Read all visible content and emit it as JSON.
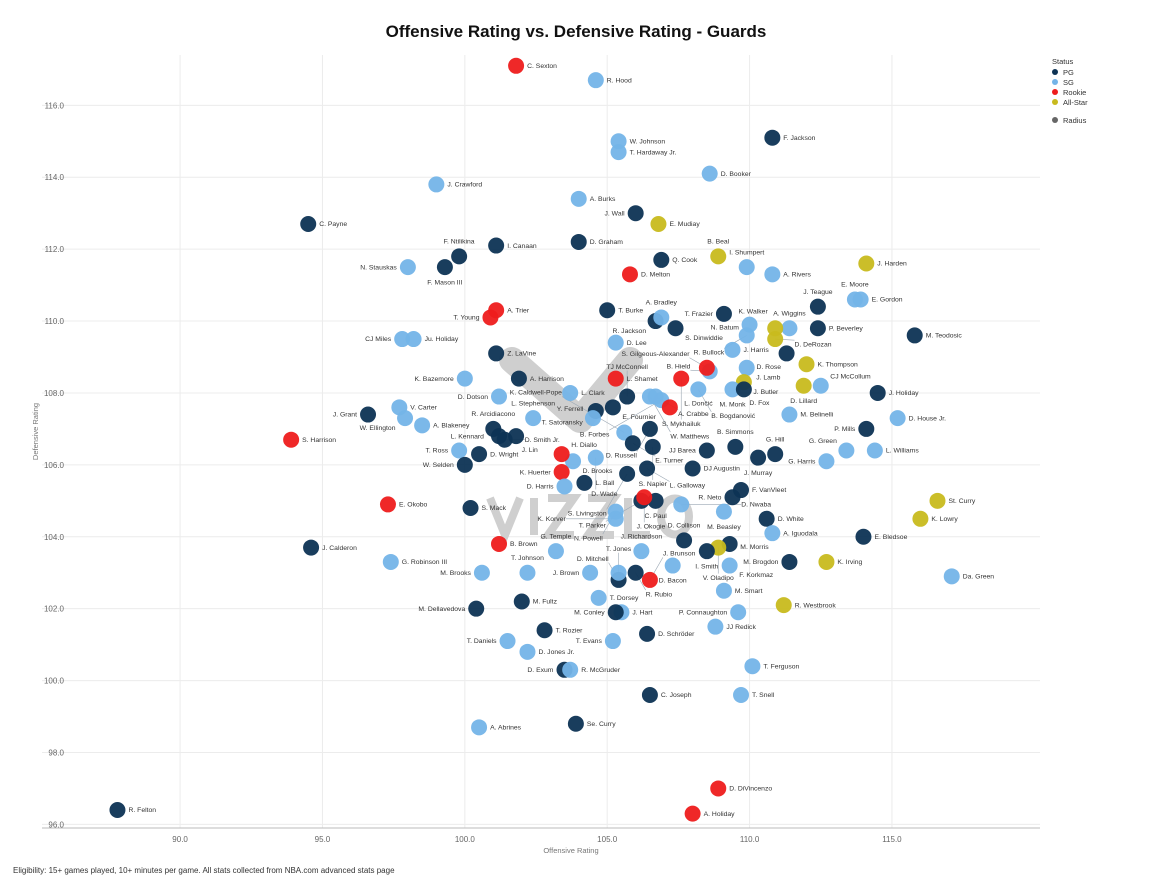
{
  "chart_data": {
    "type": "scatter",
    "title": "Offensive Rating vs. Defensive Rating - Guards",
    "xlabel": "Offensive Rating",
    "ylabel": "Defensive Rating",
    "xlim": [
      85.15,
      120.2
    ],
    "ylim": [
      95.9,
      117.4
    ],
    "xticks": [
      "90.0",
      "95.0",
      "100.0",
      "105.0",
      "110.0",
      "115.0"
    ],
    "yticks": [
      "96.0",
      "98.0",
      "100.0",
      "102.0",
      "104.0",
      "106.0",
      "108.0",
      "110.0",
      "112.0",
      "114.0",
      "116.0"
    ],
    "grid": true,
    "legend": {
      "placement": "top-right",
      "title": "Status",
      "entries": [
        "PG",
        "SG",
        "Rookie",
        "All-Star"
      ],
      "size_label": "Radius"
    },
    "colors": {
      "PG": "#0d3354",
      "SG": "#74b4e8",
      "Rookie": "#ee1c1c",
      "All-Star": "#c8ba1e"
    },
    "points": [
      {
        "name": "C. Sexton",
        "x": 101.8,
        "y": 117.1,
        "status": "Rookie"
      },
      {
        "name": "R. Hood",
        "x": 104.6,
        "y": 116.7,
        "status": "SG"
      },
      {
        "name": "W. Johnson",
        "x": 105.4,
        "y": 115.0,
        "status": "SG"
      },
      {
        "name": "T. Hardaway Jr.",
        "x": 105.4,
        "y": 114.7,
        "status": "SG"
      },
      {
        "name": "F. Jackson",
        "x": 110.8,
        "y": 115.1,
        "status": "PG"
      },
      {
        "name": "D. Booker",
        "x": 108.6,
        "y": 114.1,
        "status": "SG"
      },
      {
        "name": "J. Crawford",
        "x": 99.0,
        "y": 113.8,
        "status": "SG"
      },
      {
        "name": "A. Burks",
        "x": 104.0,
        "y": 113.4,
        "status": "SG"
      },
      {
        "name": "J. Wall",
        "x": 106.0,
        "y": 113.0,
        "status": "PG"
      },
      {
        "name": "E. Mudiay",
        "x": 106.8,
        "y": 112.7,
        "status": "All-Star"
      },
      {
        "name": "C. Payne",
        "x": 94.5,
        "y": 112.7,
        "status": "PG"
      },
      {
        "name": "D. Graham",
        "x": 104.0,
        "y": 112.2,
        "status": "PG"
      },
      {
        "name": "I. Canaan",
        "x": 101.1,
        "y": 112.1,
        "status": "PG"
      },
      {
        "name": "F. Mason III",
        "x": 99.3,
        "y": 111.5,
        "status": "PG"
      },
      {
        "name": "F. Ntilikina",
        "x": 99.8,
        "y": 111.8,
        "status": "PG"
      },
      {
        "name": "N. Stauskas",
        "x": 98.0,
        "y": 111.5,
        "status": "SG"
      },
      {
        "name": "Q. Cook",
        "x": 106.9,
        "y": 111.7,
        "status": "PG"
      },
      {
        "name": "D. Melton",
        "x": 105.8,
        "y": 111.3,
        "status": "Rookie"
      },
      {
        "name": "B. Beal",
        "x": 108.9,
        "y": 111.8,
        "status": "All-Star"
      },
      {
        "name": "I. Shumpert",
        "x": 109.9,
        "y": 111.5,
        "status": "SG"
      },
      {
        "name": "A. Rivers",
        "x": 110.8,
        "y": 111.3,
        "status": "SG"
      },
      {
        "name": "J. Harden",
        "x": 114.1,
        "y": 111.6,
        "status": "All-Star"
      },
      {
        "name": "E. Moore",
        "x": 113.7,
        "y": 110.6,
        "status": "SG"
      },
      {
        "name": "E. Gordon",
        "x": 113.9,
        "y": 110.6,
        "status": "SG"
      },
      {
        "name": "A. Wiggins",
        "x": 111.4,
        "y": 109.8,
        "status": "SG"
      },
      {
        "name": "J. Teague",
        "x": 112.4,
        "y": 110.4,
        "status": "PG"
      },
      {
        "name": "P. Beverley",
        "x": 112.4,
        "y": 109.8,
        "status": "PG"
      },
      {
        "name": "D. DeRozan",
        "x": 110.9,
        "y": 109.5,
        "status": "All-Star"
      },
      {
        "name": "K. Walker",
        "x": 110.9,
        "y": 109.8,
        "status": "All-Star"
      },
      {
        "name": "M. Teodosic",
        "x": 115.8,
        "y": 109.6,
        "status": "PG"
      },
      {
        "name": "T. Frazier",
        "x": 109.1,
        "y": 110.2,
        "status": "PG"
      },
      {
        "name": "N. Batum",
        "x": 110.0,
        "y": 109.9,
        "status": "SG"
      },
      {
        "name": "R. Bullock",
        "x": 109.9,
        "y": 109.6,
        "status": "SG"
      },
      {
        "name": "J. Harris",
        "x": 109.4,
        "y": 109.2,
        "status": "SG"
      },
      {
        "name": "D. Rose",
        "x": 111.3,
        "y": 109.1,
        "status": "PG"
      },
      {
        "name": "K. Thompson",
        "x": 112.0,
        "y": 108.8,
        "status": "All-Star"
      },
      {
        "name": "J. Lamb",
        "x": 109.9,
        "y": 108.7,
        "status": "SG"
      },
      {
        "name": "J. Butler",
        "x": 109.8,
        "y": 108.3,
        "status": "All-Star"
      },
      {
        "name": "M. Monk",
        "x": 109.4,
        "y": 108.1,
        "status": "SG"
      },
      {
        "name": "D. Fox",
        "x": 109.8,
        "y": 108.1,
        "status": "PG"
      },
      {
        "name": "D. Lillard",
        "x": 111.9,
        "y": 108.2,
        "status": "All-Star"
      },
      {
        "name": "CJ McCollum",
        "x": 112.5,
        "y": 108.2,
        "status": "SG"
      },
      {
        "name": "J. Holiday",
        "x": 114.5,
        "y": 108.0,
        "status": "PG"
      },
      {
        "name": "M. Belinelli",
        "x": 111.4,
        "y": 107.4,
        "status": "SG"
      },
      {
        "name": "D. House Jr.",
        "x": 115.2,
        "y": 107.3,
        "status": "SG"
      },
      {
        "name": "P. Mills",
        "x": 114.1,
        "y": 107.0,
        "status": "PG"
      },
      {
        "name": "L. Williams",
        "x": 114.4,
        "y": 106.4,
        "status": "SG"
      },
      {
        "name": "G. Green",
        "x": 113.4,
        "y": 106.4,
        "status": "SG"
      },
      {
        "name": "G. Harris",
        "x": 112.7,
        "y": 106.1,
        "status": "SG"
      },
      {
        "name": "G. Hill",
        "x": 110.9,
        "y": 106.3,
        "status": "PG"
      },
      {
        "name": "J. Murray",
        "x": 110.3,
        "y": 106.2,
        "status": "PG"
      },
      {
        "name": "B. Simmons",
        "x": 109.5,
        "y": 106.5,
        "status": "PG"
      },
      {
        "name": "JJ Barea",
        "x": 108.5,
        "y": 106.4,
        "status": "PG"
      },
      {
        "name": "DJ Augustin",
        "x": 108.0,
        "y": 105.9,
        "status": "PG"
      },
      {
        "name": "F. VanVleet",
        "x": 109.7,
        "y": 105.3,
        "status": "PG"
      },
      {
        "name": "R. Neto",
        "x": 109.4,
        "y": 105.1,
        "status": "PG"
      },
      {
        "name": "M. Beasley",
        "x": 109.1,
        "y": 104.7,
        "status": "SG"
      },
      {
        "name": "D. White",
        "x": 110.6,
        "y": 104.5,
        "status": "PG"
      },
      {
        "name": "A. Iguodala",
        "x": 110.8,
        "y": 104.1,
        "status": "SG"
      },
      {
        "name": "E. Bledsoe",
        "x": 114.0,
        "y": 104.0,
        "status": "PG"
      },
      {
        "name": "St. Curry",
        "x": 116.6,
        "y": 105.0,
        "status": "All-Star"
      },
      {
        "name": "K. Lowry",
        "x": 116.0,
        "y": 104.5,
        "status": "All-Star"
      },
      {
        "name": "Da. Green",
        "x": 117.1,
        "y": 102.9,
        "status": "SG"
      },
      {
        "name": "K. Irving",
        "x": 112.7,
        "y": 103.3,
        "status": "All-Star"
      },
      {
        "name": "M. Brogdon",
        "x": 111.4,
        "y": 103.3,
        "status": "PG"
      },
      {
        "name": "M. Morris",
        "x": 109.3,
        "y": 103.8,
        "status": "PG"
      },
      {
        "name": "V. Oladipo",
        "x": 108.9,
        "y": 103.7,
        "status": "All-Star"
      },
      {
        "name": "D. Collison",
        "x": 107.7,
        "y": 103.9,
        "status": "PG"
      },
      {
        "name": "I. Smith",
        "x": 108.5,
        "y": 103.6,
        "status": "PG"
      },
      {
        "name": "F. Korkmaz",
        "x": 109.3,
        "y": 103.2,
        "status": "SG"
      },
      {
        "name": "D. Bacon",
        "x": 107.3,
        "y": 103.2,
        "status": "SG"
      },
      {
        "name": "M. Smart",
        "x": 109.1,
        "y": 102.5,
        "status": "SG"
      },
      {
        "name": "R. Westbrook",
        "x": 111.2,
        "y": 102.1,
        "status": "All-Star"
      },
      {
        "name": "P. Connaughton",
        "x": 109.6,
        "y": 101.9,
        "status": "SG"
      },
      {
        "name": "JJ Redick",
        "x": 108.8,
        "y": 101.5,
        "status": "SG"
      },
      {
        "name": "T. Ferguson",
        "x": 110.1,
        "y": 100.4,
        "status": "SG"
      },
      {
        "name": "T. Snell",
        "x": 109.7,
        "y": 99.6,
        "status": "SG"
      },
      {
        "name": "C. Joseph",
        "x": 106.5,
        "y": 99.6,
        "status": "PG"
      },
      {
        "name": "D. Schröder",
        "x": 106.4,
        "y": 101.3,
        "status": "PG"
      },
      {
        "name": "J. Hart",
        "x": 105.5,
        "y": 101.9,
        "status": "SG"
      },
      {
        "name": "M. Conley",
        "x": 105.3,
        "y": 101.9,
        "status": "PG"
      },
      {
        "name": "T. Evans",
        "x": 105.2,
        "y": 101.1,
        "status": "SG"
      },
      {
        "name": "T. Dorsey",
        "x": 104.7,
        "y": 102.3,
        "status": "SG"
      },
      {
        "name": "D. Mitchell",
        "x": 105.4,
        "y": 102.8,
        "status": "PG"
      },
      {
        "name": "T. Jones",
        "x": 105.4,
        "y": 103.0,
        "status": "SG"
      },
      {
        "name": "R. Rubio",
        "x": 106.0,
        "y": 103.0,
        "status": "PG"
      },
      {
        "name": "J. Brunson",
        "x": 106.5,
        "y": 102.8,
        "status": "Rookie"
      },
      {
        "name": "J. Richardson",
        "x": 106.2,
        "y": 103.6,
        "status": "SG"
      },
      {
        "name": "J. Brown",
        "x": 104.4,
        "y": 103.0,
        "status": "SG"
      },
      {
        "name": "T. Johnson",
        "x": 102.2,
        "y": 103.0,
        "status": "SG"
      },
      {
        "name": "M. Brooks",
        "x": 100.6,
        "y": 103.0,
        "status": "SG"
      },
      {
        "name": "G. Temple",
        "x": 103.2,
        "y": 103.6,
        "status": "SG"
      },
      {
        "name": "B. Brown",
        "x": 101.2,
        "y": 103.8,
        "status": "Rookie"
      },
      {
        "name": "M. Fultz",
        "x": 102.0,
        "y": 102.2,
        "status": "PG"
      },
      {
        "name": "M. Dellavedova",
        "x": 100.4,
        "y": 102.0,
        "status": "PG"
      },
      {
        "name": "T. Rozier",
        "x": 102.8,
        "y": 101.4,
        "status": "PG"
      },
      {
        "name": "T. Daniels",
        "x": 101.5,
        "y": 101.1,
        "status": "SG"
      },
      {
        "name": "D. Jones Jr.",
        "x": 102.2,
        "y": 100.8,
        "status": "SG"
      },
      {
        "name": "D. Exum",
        "x": 103.5,
        "y": 100.3,
        "status": "PG"
      },
      {
        "name": "R. McGruder",
        "x": 103.7,
        "y": 100.3,
        "status": "SG"
      },
      {
        "name": "Se. Curry",
        "x": 103.9,
        "y": 98.8,
        "status": "PG"
      },
      {
        "name": "A. Abrines",
        "x": 100.5,
        "y": 98.7,
        "status": "SG"
      },
      {
        "name": "D. DiVincenzo",
        "x": 108.9,
        "y": 97.0,
        "status": "Rookie"
      },
      {
        "name": "A. Holiday",
        "x": 108.0,
        "y": 96.3,
        "status": "Rookie"
      },
      {
        "name": "R. Felton",
        "x": 87.8,
        "y": 96.4,
        "status": "PG"
      },
      {
        "name": "J. Calderon",
        "x": 94.6,
        "y": 103.7,
        "status": "PG"
      },
      {
        "name": "G. Robinson III",
        "x": 97.4,
        "y": 103.3,
        "status": "SG"
      },
      {
        "name": "E. Okobo",
        "x": 97.3,
        "y": 104.9,
        "status": "Rookie"
      },
      {
        "name": "S. Mack",
        "x": 100.2,
        "y": 104.8,
        "status": "PG"
      },
      {
        "name": "S. Harrison",
        "x": 93.9,
        "y": 106.7,
        "status": "Rookie"
      },
      {
        "name": "J. Grant",
        "x": 96.6,
        "y": 107.4,
        "status": "PG"
      },
      {
        "name": "V. Carter",
        "x": 97.7,
        "y": 107.6,
        "status": "SG"
      },
      {
        "name": "W. Ellington",
        "x": 97.9,
        "y": 107.3,
        "status": "SG"
      },
      {
        "name": "A. Blakeney",
        "x": 98.5,
        "y": 107.1,
        "status": "SG"
      },
      {
        "name": "T. Ross",
        "x": 99.8,
        "y": 106.4,
        "status": "SG"
      },
      {
        "name": "D. Wright",
        "x": 100.5,
        "y": 106.3,
        "status": "PG"
      },
      {
        "name": "W. Selden",
        "x": 100.0,
        "y": 106.0,
        "status": "PG"
      },
      {
        "name": "R. Arcidiacono",
        "x": 101.0,
        "y": 107.0,
        "status": "PG"
      },
      {
        "name": "L. Kennard",
        "x": 101.2,
        "y": 106.8,
        "status": "PG"
      },
      {
        "name": "D. Smith Jr.",
        "x": 101.4,
        "y": 106.7,
        "status": "PG"
      },
      {
        "name": "J. Lin",
        "x": 101.8,
        "y": 106.8,
        "status": "PG"
      },
      {
        "name": "L. Stephenson",
        "x": 102.4,
        "y": 107.3,
        "status": "SG"
      },
      {
        "name": "K. Bazemore",
        "x": 100.0,
        "y": 108.4,
        "status": "SG"
      },
      {
        "name": "A. Harrison",
        "x": 101.9,
        "y": 108.4,
        "status": "PG"
      },
      {
        "name": "D. Dotson",
        "x": 101.2,
        "y": 107.9,
        "status": "SG"
      },
      {
        "name": "Z. LaVine",
        "x": 101.1,
        "y": 109.1,
        "status": "PG"
      },
      {
        "name": "T. Young",
        "x": 100.9,
        "y": 110.1,
        "status": "Rookie"
      },
      {
        "name": "A. Trier",
        "x": 101.1,
        "y": 110.3,
        "status": "Rookie"
      },
      {
        "name": "CJ Miles",
        "x": 97.8,
        "y": 109.5,
        "status": "SG"
      },
      {
        "name": "Ju. Holiday",
        "x": 98.2,
        "y": 109.5,
        "status": "SG"
      },
      {
        "name": "D. Lee",
        "x": 105.3,
        "y": 109.4,
        "status": "SG"
      },
      {
        "name": "T. Burke",
        "x": 105.0,
        "y": 110.3,
        "status": "PG"
      },
      {
        "name": "R. Jackson",
        "x": 106.7,
        "y": 110.0,
        "status": "PG"
      },
      {
        "name": "A. Bradley",
        "x": 106.9,
        "y": 110.1,
        "status": "SG"
      },
      {
        "name": "S. Dinwiddie",
        "x": 107.4,
        "y": 109.8,
        "status": "PG"
      },
      {
        "name": "L. Clark",
        "x": 103.7,
        "y": 108.0,
        "status": "SG"
      },
      {
        "name": "L. Shamet",
        "x": 105.3,
        "y": 108.4,
        "status": "Rookie"
      },
      {
        "name": "TJ McConnell",
        "x": 105.7,
        "y": 107.9,
        "status": "PG"
      },
      {
        "name": "E. Fournier",
        "x": 105.2,
        "y": 107.6,
        "status": "PG"
      },
      {
        "name": "B. Hield",
        "x": 108.6,
        "y": 108.6,
        "status": "SG"
      },
      {
        "name": "S. Gilgeous-Alexander",
        "x": 108.5,
        "y": 108.7,
        "status": "Rookie"
      },
      {
        "name": "S. Mykhailuk",
        "x": 107.6,
        "y": 108.4,
        "status": "Rookie"
      },
      {
        "name": "W. Matthews",
        "x": 106.5,
        "y": 107.9,
        "status": "SG"
      },
      {
        "name": "A. Crabbe",
        "x": 106.7,
        "y": 107.9,
        "status": "SG"
      },
      {
        "name": "B. Forbes",
        "x": 106.9,
        "y": 107.8,
        "status": "SG"
      },
      {
        "name": "L. Dončić",
        "x": 107.2,
        "y": 107.6,
        "status": "Rookie"
      },
      {
        "name": "B. Bogdanović",
        "x": 108.2,
        "y": 108.1,
        "status": "SG"
      },
      {
        "name": "T. Satoransky",
        "x": 104.6,
        "y": 107.5,
        "status": "PG"
      },
      {
        "name": "Y. Ferrell",
        "x": 104.5,
        "y": 107.3,
        "status": "SG"
      },
      {
        "name": "D. Russell",
        "x": 106.5,
        "y": 107.0,
        "status": "PG"
      },
      {
        "name": "K. Caldwell-Pope",
        "x": 105.6,
        "y": 106.9,
        "status": "SG"
      },
      {
        "name": "E. Turner",
        "x": 105.9,
        "y": 106.6,
        "status": "PG"
      },
      {
        "name": "S. Napier",
        "x": 106.6,
        "y": 106.5,
        "status": "PG"
      },
      {
        "name": "D. Wade",
        "x": 104.6,
        "y": 106.2,
        "status": "SG"
      },
      {
        "name": "D. Brooks",
        "x": 103.8,
        "y": 106.1,
        "status": "SG"
      },
      {
        "name": "H. Diallo",
        "x": 103.4,
        "y": 106.3,
        "status": "Rookie"
      },
      {
        "name": "K. Huerter",
        "x": 103.4,
        "y": 105.8,
        "status": "Rookie"
      },
      {
        "name": "L. Galloway",
        "x": 106.4,
        "y": 105.9,
        "status": "PG"
      },
      {
        "name": "S. Livingston",
        "x": 105.7,
        "y": 105.75,
        "status": "PG"
      },
      {
        "name": "L. Ball",
        "x": 104.2,
        "y": 105.5,
        "status": "PG"
      },
      {
        "name": "D. Harris",
        "x": 103.5,
        "y": 105.4,
        "status": "SG"
      },
      {
        "name": "C. Paul",
        "x": 106.7,
        "y": 105.0,
        "status": "PG"
      },
      {
        "name": "T. Parker",
        "x": 106.2,
        "y": 105.0,
        "status": "PG"
      },
      {
        "name": "J. Okogie",
        "x": 106.3,
        "y": 105.1,
        "status": "Rookie"
      },
      {
        "name": "D. Nwaba",
        "x": 107.6,
        "y": 104.9,
        "status": "SG"
      },
      {
        "name": "N. Powell",
        "x": 105.3,
        "y": 104.7,
        "status": "SG"
      },
      {
        "name": "K. Korver",
        "x": 105.3,
        "y": 104.5,
        "status": "SG"
      }
    ]
  },
  "watermark": "VIZZLO",
  "footer": "Eligibility: 15+ games played, 10+ minutes per game. All stats collected from NBA.com advanced stats page"
}
